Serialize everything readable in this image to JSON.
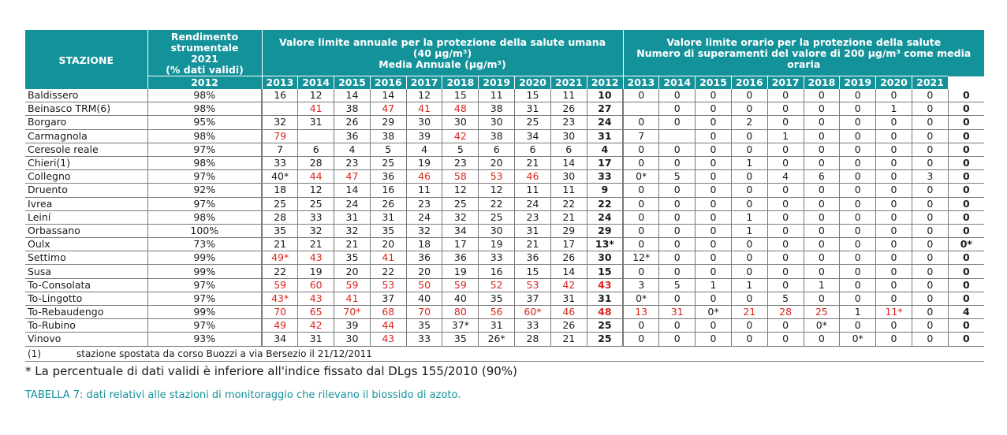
{
  "header": {
    "station": "STAZIONE",
    "rendimento": [
      "Rendimento",
      "strumentale",
      "2021",
      "(% dati validi)"
    ],
    "annual": [
      "Valore limite annuale per la protezione della salute umana",
      "(40 µg/m³)",
      "Media Annuale (µg/m³)"
    ],
    "hourly": [
      "Valore limite orario per la protezione della salute",
      "Numero di superamenti del valore di 200 µg/m³ come media",
      "oraria"
    ],
    "years": [
      "2012",
      "2013",
      "2014",
      "2015",
      "2016",
      "2017",
      "2018",
      "2019",
      "2020",
      "2021"
    ]
  },
  "rows": [
    {
      "station": "Baldissero",
      "rend": "98%",
      "annual": [
        "16",
        "12",
        "14",
        "14",
        "12",
        "15",
        "11",
        "15",
        "11",
        "10"
      ],
      "hourly": [
        "0",
        "0",
        "0",
        "0",
        "0",
        "0",
        "0",
        "0",
        "0",
        "0"
      ]
    },
    {
      "station": "Beinasco TRM(6)",
      "rend": "98%",
      "annual": [
        "",
        "41",
        "38",
        "47",
        "41",
        "48",
        "38",
        "31",
        "26",
        "27"
      ],
      "hourly": [
        "",
        "0",
        "0",
        "0",
        "0",
        "0",
        "0",
        "1",
        "0",
        "0"
      ]
    },
    {
      "station": "Borgaro",
      "rend": "95%",
      "annual": [
        "32",
        "31",
        "26",
        "29",
        "30",
        "30",
        "30",
        "25",
        "23",
        "24"
      ],
      "hourly": [
        "0",
        "0",
        "0",
        "2",
        "0",
        "0",
        "0",
        "0",
        "0",
        "0"
      ]
    },
    {
      "station": "Carmagnola",
      "rend": "98%",
      "annual": [
        "79",
        "",
        "36",
        "38",
        "39",
        "42",
        "38",
        "34",
        "30",
        "31"
      ],
      "hourly": [
        "7",
        "",
        "0",
        "0",
        "1",
        "0",
        "0",
        "0",
        "0",
        "0"
      ]
    },
    {
      "station": "Ceresole reale",
      "rend": "97%",
      "annual": [
        "7",
        "6",
        "4",
        "5",
        "4",
        "5",
        "6",
        "6",
        "6",
        "4"
      ],
      "hourly": [
        "0",
        "0",
        "0",
        "0",
        "0",
        "0",
        "0",
        "0",
        "0",
        "0"
      ]
    },
    {
      "station": "Chieri(1)",
      "rend": "98%",
      "annual": [
        "33",
        "28",
        "23",
        "25",
        "19",
        "23",
        "20",
        "21",
        "14",
        "17"
      ],
      "hourly": [
        "0",
        "0",
        "0",
        "1",
        "0",
        "0",
        "0",
        "0",
        "0",
        "0"
      ]
    },
    {
      "station": "Collegno",
      "rend": "97%",
      "annual": [
        "40*",
        "44",
        "47",
        "36",
        "46",
        "58",
        "53",
        "46",
        "30",
        "33"
      ],
      "hourly": [
        "0*",
        "5",
        "0",
        "0",
        "4",
        "6",
        "0",
        "0",
        "3",
        "0"
      ]
    },
    {
      "station": "Druento",
      "rend": "92%",
      "annual": [
        "18",
        "12",
        "14",
        "16",
        "11",
        "12",
        "12",
        "11",
        "11",
        "9"
      ],
      "hourly": [
        "0",
        "0",
        "0",
        "0",
        "0",
        "0",
        "0",
        "0",
        "0",
        "0"
      ]
    },
    {
      "station": "Ivrea",
      "rend": "97%",
      "annual": [
        "25",
        "25",
        "24",
        "26",
        "23",
        "25",
        "22",
        "24",
        "22",
        "22"
      ],
      "hourly": [
        "0",
        "0",
        "0",
        "0",
        "0",
        "0",
        "0",
        "0",
        "0",
        "0"
      ]
    },
    {
      "station": "Leiní",
      "rend": "98%",
      "annual": [
        "28",
        "33",
        "31",
        "31",
        "24",
        "32",
        "25",
        "23",
        "21",
        "24"
      ],
      "hourly": [
        "0",
        "0",
        "0",
        "1",
        "0",
        "0",
        "0",
        "0",
        "0",
        "0"
      ]
    },
    {
      "station": "Orbassano",
      "rend": "100%",
      "annual": [
        "35",
        "32",
        "32",
        "35",
        "32",
        "34",
        "30",
        "31",
        "29",
        "29"
      ],
      "hourly": [
        "0",
        "0",
        "0",
        "1",
        "0",
        "0",
        "0",
        "0",
        "0",
        "0"
      ]
    },
    {
      "station": "Oulx",
      "rend": "73%",
      "annual": [
        "21",
        "21",
        "21",
        "20",
        "18",
        "17",
        "19",
        "21",
        "17",
        "13*"
      ],
      "hourly": [
        "0",
        "0",
        "0",
        "0",
        "0",
        "0",
        "0",
        "0",
        "0",
        "0*"
      ]
    },
    {
      "station": "Settimo",
      "rend": "99%",
      "annual": [
        "49*",
        "43",
        "35",
        "41",
        "36",
        "36",
        "33",
        "36",
        "26",
        "30"
      ],
      "hourly": [
        "12*",
        "0",
        "0",
        "0",
        "0",
        "0",
        "0",
        "0",
        "0",
        "0"
      ]
    },
    {
      "station": "Susa",
      "rend": "99%",
      "annual": [
        "22",
        "19",
        "20",
        "22",
        "20",
        "19",
        "16",
        "15",
        "14",
        "15"
      ],
      "hourly": [
        "0",
        "0",
        "0",
        "0",
        "0",
        "0",
        "0",
        "0",
        "0",
        "0"
      ]
    },
    {
      "station": "To-Consolata",
      "rend": "97%",
      "annual": [
        "59",
        "60",
        "59",
        "53",
        "50",
        "59",
        "52",
        "53",
        "42",
        "43"
      ],
      "hourly": [
        "3",
        "5",
        "1",
        "1",
        "0",
        "1",
        "0",
        "0",
        "0",
        "0"
      ]
    },
    {
      "station": "To-Lingotto",
      "rend": "97%",
      "annual": [
        "43*",
        "43",
        "41",
        "37",
        "40",
        "40",
        "35",
        "37",
        "31",
        "31"
      ],
      "hourly": [
        "0*",
        "0",
        "0",
        "0",
        "5",
        "0",
        "0",
        "0",
        "0",
        "0"
      ]
    },
    {
      "station": "To-Rebaudengo",
      "rend": "99%",
      "annual": [
        "70",
        "65",
        "70*",
        "68",
        "70",
        "80",
        "56",
        "60*",
        "46",
        "48"
      ],
      "hourly": [
        "13",
        "31",
        "0*",
        "21",
        "28",
        "25",
        "1",
        "11*",
        "0",
        "4"
      ]
    },
    {
      "station": "To-Rubino",
      "rend": "97%",
      "annual": [
        "49",
        "42",
        "39",
        "44",
        "35",
        "37*",
        "31",
        "33",
        "26",
        "25"
      ],
      "hourly": [
        "0",
        "0",
        "0",
        "0",
        "0",
        "0*",
        "0",
        "0",
        "0",
        "0"
      ]
    },
    {
      "station": "Vinovo",
      "rend": "93%",
      "annual": [
        "34",
        "31",
        "30",
        "43",
        "33",
        "35",
        "26*",
        "28",
        "21",
        "25"
      ],
      "hourly": [
        "0",
        "0",
        "0",
        "0",
        "0",
        "0",
        "0*",
        "0",
        "0",
        "0"
      ]
    }
  ],
  "note": {
    "ref": "(1)",
    "text": "stazione spostata da corso Buozzi a via Bersezio il 21/12/2011"
  },
  "footnote": "* La percentuale di dati validi è inferiore all'indice fissato dal DLgs 155/2010 (90%)",
  "caption": "TABELLA 7: dati relativi alle stazioni di monitoraggio che rilevano il biossido di azoto.",
  "colors": {
    "header_bg": "#14929a",
    "exceed_red": "#d9251d",
    "caption": "#14929a"
  }
}
